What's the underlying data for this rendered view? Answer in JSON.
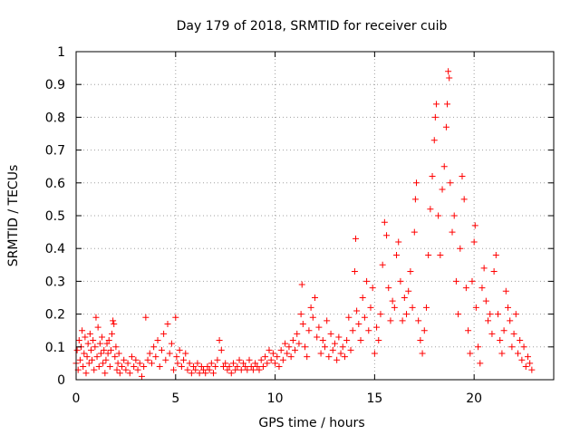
{
  "chart_data": {
    "type": "scatter",
    "title": "Day 179 of 2018, SRMTID for receiver cuib",
    "xlabel": "GPS time / hours",
    "ylabel": "SRMTID / TECUs",
    "xlim": [
      0,
      24
    ],
    "ylim": [
      0,
      1
    ],
    "xticks": [
      0,
      5,
      10,
      15,
      20
    ],
    "yticks": [
      0,
      0.1,
      0.2,
      0.3,
      0.4,
      0.5,
      0.6,
      0.7,
      0.8,
      0.9,
      1
    ],
    "grid": true,
    "marker": "+",
    "color": "#ff0000",
    "series": [
      {
        "name": "SRMTID",
        "points": [
          [
            0.0,
            0.05
          ],
          [
            0.05,
            0.09
          ],
          [
            0.1,
            0.03
          ],
          [
            0.15,
            0.12
          ],
          [
            0.2,
            0.06
          ],
          [
            0.25,
            0.1
          ],
          [
            0.3,
            0.15
          ],
          [
            0.35,
            0.04
          ],
          [
            0.4,
            0.08
          ],
          [
            0.45,
            0.13
          ],
          [
            0.5,
            0.02
          ],
          [
            0.55,
            0.07
          ],
          [
            0.6,
            0.11
          ],
          [
            0.65,
            0.05
          ],
          [
            0.7,
            0.14
          ],
          [
            0.75,
            0.09
          ],
          [
            0.8,
            0.06
          ],
          [
            0.85,
            0.12
          ],
          [
            0.9,
            0.03
          ],
          [
            0.95,
            0.1
          ],
          [
            1.0,
            0.19
          ],
          [
            1.05,
            0.07
          ],
          [
            1.1,
            0.16
          ],
          [
            1.15,
            0.04
          ],
          [
            1.2,
            0.11
          ],
          [
            1.25,
            0.08
          ],
          [
            1.3,
            0.13
          ],
          [
            1.35,
            0.05
          ],
          [
            1.4,
            0.09
          ],
          [
            1.45,
            0.02
          ],
          [
            1.5,
            0.06
          ],
          [
            1.55,
            0.11
          ],
          [
            1.6,
            0.08
          ],
          [
            1.65,
            0.12
          ],
          [
            1.7,
            0.04
          ],
          [
            1.75,
            0.09
          ],
          [
            1.8,
            0.14
          ],
          [
            1.85,
            0.18
          ],
          [
            1.9,
            0.17
          ],
          [
            1.95,
            0.07
          ],
          [
            2.0,
            0.1
          ],
          [
            2.05,
            0.03
          ],
          [
            2.1,
            0.05
          ],
          [
            2.15,
            0.08
          ],
          [
            2.2,
            0.02
          ],
          [
            2.3,
            0.04
          ],
          [
            2.4,
            0.06
          ],
          [
            2.5,
            0.03
          ],
          [
            2.6,
            0.05
          ],
          [
            2.7,
            0.02
          ],
          [
            2.8,
            0.07
          ],
          [
            2.9,
            0.04
          ],
          [
            3.0,
            0.06
          ],
          [
            3.1,
            0.03
          ],
          [
            3.2,
            0.05
          ],
          [
            3.3,
            0.01
          ],
          [
            3.4,
            0.04
          ],
          [
            3.5,
            0.19
          ],
          [
            3.6,
            0.06
          ],
          [
            3.7,
            0.08
          ],
          [
            3.8,
            0.05
          ],
          [
            3.9,
            0.1
          ],
          [
            4.0,
            0.07
          ],
          [
            4.1,
            0.12
          ],
          [
            4.2,
            0.04
          ],
          [
            4.3,
            0.09
          ],
          [
            4.4,
            0.14
          ],
          [
            4.5,
            0.06
          ],
          [
            4.6,
            0.17
          ],
          [
            4.7,
            0.08
          ],
          [
            4.8,
            0.11
          ],
          [
            4.9,
            0.03
          ],
          [
            5.0,
            0.19
          ],
          [
            5.05,
            0.07
          ],
          [
            5.1,
            0.05
          ],
          [
            5.2,
            0.09
          ],
          [
            5.3,
            0.04
          ],
          [
            5.4,
            0.06
          ],
          [
            5.5,
            0.08
          ],
          [
            5.6,
            0.03
          ],
          [
            5.7,
            0.05
          ],
          [
            5.8,
            0.02
          ],
          [
            5.9,
            0.04
          ],
          [
            6.0,
            0.03
          ],
          [
            6.1,
            0.05
          ],
          [
            6.2,
            0.02
          ],
          [
            6.3,
            0.04
          ],
          [
            6.4,
            0.03
          ],
          [
            6.5,
            0.02
          ],
          [
            6.6,
            0.04
          ],
          [
            6.7,
            0.03
          ],
          [
            6.8,
            0.05
          ],
          [
            6.9,
            0.02
          ],
          [
            7.0,
            0.04
          ],
          [
            7.1,
            0.06
          ],
          [
            7.2,
            0.12
          ],
          [
            7.3,
            0.09
          ],
          [
            7.4,
            0.04
          ],
          [
            7.5,
            0.05
          ],
          [
            7.6,
            0.03
          ],
          [
            7.7,
            0.04
          ],
          [
            7.8,
            0.02
          ],
          [
            7.9,
            0.05
          ],
          [
            8.0,
            0.03
          ],
          [
            8.1,
            0.04
          ],
          [
            8.2,
            0.06
          ],
          [
            8.3,
            0.03
          ],
          [
            8.4,
            0.05
          ],
          [
            8.5,
            0.04
          ],
          [
            8.6,
            0.03
          ],
          [
            8.7,
            0.06
          ],
          [
            8.8,
            0.04
          ],
          [
            8.9,
            0.03
          ],
          [
            9.0,
            0.05
          ],
          [
            9.1,
            0.04
          ],
          [
            9.2,
            0.03
          ],
          [
            9.3,
            0.06
          ],
          [
            9.4,
            0.04
          ],
          [
            9.5,
            0.07
          ],
          [
            9.6,
            0.05
          ],
          [
            9.7,
            0.09
          ],
          [
            9.8,
            0.06
          ],
          [
            9.9,
            0.08
          ],
          [
            10.0,
            0.05
          ],
          [
            10.1,
            0.07
          ],
          [
            10.2,
            0.04
          ],
          [
            10.3,
            0.09
          ],
          [
            10.4,
            0.06
          ],
          [
            10.5,
            0.11
          ],
          [
            10.6,
            0.08
          ],
          [
            10.7,
            0.1
          ],
          [
            10.8,
            0.07
          ],
          [
            10.9,
            0.12
          ],
          [
            11.0,
            0.09
          ],
          [
            11.1,
            0.14
          ],
          [
            11.2,
            0.11
          ],
          [
            11.3,
            0.2
          ],
          [
            11.35,
            0.29
          ],
          [
            11.4,
            0.17
          ],
          [
            11.5,
            0.1
          ],
          [
            11.6,
            0.07
          ],
          [
            11.7,
            0.15
          ],
          [
            11.8,
            0.22
          ],
          [
            11.9,
            0.19
          ],
          [
            12.0,
            0.25
          ],
          [
            12.1,
            0.13
          ],
          [
            12.2,
            0.16
          ],
          [
            12.3,
            0.08
          ],
          [
            12.4,
            0.12
          ],
          [
            12.5,
            0.1
          ],
          [
            12.6,
            0.18
          ],
          [
            12.7,
            0.07
          ],
          [
            12.8,
            0.14
          ],
          [
            12.9,
            0.09
          ],
          [
            13.0,
            0.11
          ],
          [
            13.1,
            0.06
          ],
          [
            13.2,
            0.13
          ],
          [
            13.3,
            0.08
          ],
          [
            13.4,
            0.1
          ],
          [
            13.5,
            0.07
          ],
          [
            13.6,
            0.12
          ],
          [
            13.7,
            0.19
          ],
          [
            13.8,
            0.09
          ],
          [
            13.9,
            0.15
          ],
          [
            14.0,
            0.33
          ],
          [
            14.05,
            0.43
          ],
          [
            14.1,
            0.21
          ],
          [
            14.2,
            0.17
          ],
          [
            14.3,
            0.12
          ],
          [
            14.4,
            0.25
          ],
          [
            14.5,
            0.19
          ],
          [
            14.6,
            0.3
          ],
          [
            14.7,
            0.15
          ],
          [
            14.8,
            0.22
          ],
          [
            14.9,
            0.28
          ],
          [
            15.0,
            0.08
          ],
          [
            15.1,
            0.16
          ],
          [
            15.2,
            0.12
          ],
          [
            15.3,
            0.2
          ],
          [
            15.4,
            0.35
          ],
          [
            15.5,
            0.48
          ],
          [
            15.6,
            0.44
          ],
          [
            15.7,
            0.28
          ],
          [
            15.8,
            0.18
          ],
          [
            15.9,
            0.24
          ],
          [
            16.0,
            0.22
          ],
          [
            16.1,
            0.38
          ],
          [
            16.2,
            0.42
          ],
          [
            16.3,
            0.3
          ],
          [
            16.4,
            0.18
          ],
          [
            16.5,
            0.25
          ],
          [
            16.6,
            0.2
          ],
          [
            16.7,
            0.27
          ],
          [
            16.8,
            0.33
          ],
          [
            16.9,
            0.22
          ],
          [
            17.0,
            0.45
          ],
          [
            17.05,
            0.55
          ],
          [
            17.1,
            0.6
          ],
          [
            17.2,
            0.18
          ],
          [
            17.3,
            0.12
          ],
          [
            17.4,
            0.08
          ],
          [
            17.5,
            0.15
          ],
          [
            17.6,
            0.22
          ],
          [
            17.7,
            0.38
          ],
          [
            17.8,
            0.52
          ],
          [
            17.9,
            0.62
          ],
          [
            18.0,
            0.73
          ],
          [
            18.05,
            0.8
          ],
          [
            18.1,
            0.84
          ],
          [
            18.2,
            0.5
          ],
          [
            18.3,
            0.38
          ],
          [
            18.4,
            0.58
          ],
          [
            18.5,
            0.65
          ],
          [
            18.6,
            0.77
          ],
          [
            18.65,
            0.84
          ],
          [
            18.7,
            0.94
          ],
          [
            18.75,
            0.92
          ],
          [
            18.8,
            0.6
          ],
          [
            18.9,
            0.45
          ],
          [
            19.0,
            0.5
          ],
          [
            19.1,
            0.3
          ],
          [
            19.2,
            0.2
          ],
          [
            19.3,
            0.4
          ],
          [
            19.4,
            0.62
          ],
          [
            19.5,
            0.55
          ],
          [
            19.6,
            0.28
          ],
          [
            19.7,
            0.15
          ],
          [
            19.8,
            0.08
          ],
          [
            19.9,
            0.3
          ],
          [
            20.0,
            0.42
          ],
          [
            20.05,
            0.47
          ],
          [
            20.1,
            0.22
          ],
          [
            20.2,
            0.1
          ],
          [
            20.3,
            0.05
          ],
          [
            20.4,
            0.28
          ],
          [
            20.5,
            0.34
          ],
          [
            20.6,
            0.24
          ],
          [
            20.7,
            0.18
          ],
          [
            20.8,
            0.2
          ],
          [
            20.9,
            0.14
          ],
          [
            21.0,
            0.33
          ],
          [
            21.1,
            0.38
          ],
          [
            21.2,
            0.2
          ],
          [
            21.3,
            0.12
          ],
          [
            21.4,
            0.08
          ],
          [
            21.5,
            0.15
          ],
          [
            21.6,
            0.27
          ],
          [
            21.7,
            0.22
          ],
          [
            21.8,
            0.18
          ],
          [
            21.9,
            0.1
          ],
          [
            22.0,
            0.14
          ],
          [
            22.1,
            0.2
          ],
          [
            22.2,
            0.08
          ],
          [
            22.3,
            0.12
          ],
          [
            22.4,
            0.06
          ],
          [
            22.5,
            0.1
          ],
          [
            22.6,
            0.04
          ],
          [
            22.7,
            0.07
          ],
          [
            22.8,
            0.05
          ],
          [
            22.9,
            0.03
          ]
        ]
      }
    ]
  }
}
